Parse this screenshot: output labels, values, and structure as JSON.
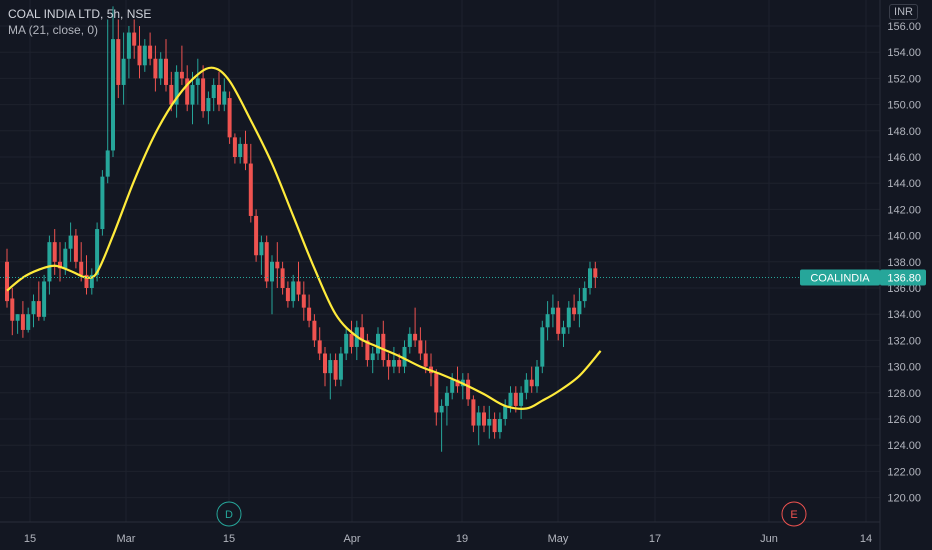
{
  "header": {
    "title": "COAL INDIA LTD, 5h, NSE",
    "indicator": "MA (21, close, 0)"
  },
  "price_axis": {
    "currency": "INR",
    "ticks": [
      "156.00",
      "154.00",
      "152.00",
      "150.00",
      "148.00",
      "146.00",
      "144.00",
      "142.00",
      "140.00",
      "138.00",
      "136.00",
      "134.00",
      "132.00",
      "130.00",
      "128.00",
      "126.00",
      "124.00",
      "122.00",
      "120.00"
    ]
  },
  "time_axis": {
    "labels": [
      "15",
      "Mar",
      "15",
      "Apr",
      "19",
      "May",
      "17",
      "Jun",
      "14"
    ]
  },
  "last_price": {
    "symbol": "COALINDIA",
    "value": "136.80",
    "value_num": 136.8,
    "color": "#26a69a"
  },
  "event_markers": [
    {
      "letter": "D",
      "color": "#26a69a"
    },
    {
      "letter": "E",
      "color": "#ef5350"
    }
  ],
  "colors": {
    "up": "#26a69a",
    "down": "#ef5350",
    "ma": "#ffeb3b",
    "background": "#131722",
    "grid": "#1e222d"
  },
  "chart_data": {
    "type": "candlestick",
    "symbol": "COAL INDIA LTD",
    "interval": "5h",
    "exchange": "NSE",
    "ylim": [
      119,
      157.5
    ],
    "ohlc": [
      [
        138.0,
        139.0,
        134.5,
        135.0
      ],
      [
        135.2,
        136.0,
        132.4,
        133.5
      ],
      [
        133.5,
        134.0,
        132.5,
        134.0
      ],
      [
        134.0,
        135.0,
        132.2,
        132.8
      ],
      [
        132.8,
        134.5,
        132.6,
        134.0
      ],
      [
        134.0,
        135.5,
        133.0,
        135.0
      ],
      [
        135.0,
        136.5,
        133.5,
        133.8
      ],
      [
        133.8,
        137.0,
        133.5,
        136.5
      ],
      [
        136.5,
        140.0,
        135.5,
        139.5
      ],
      [
        139.5,
        140.5,
        137.0,
        138.0
      ],
      [
        138.0,
        139.5,
        136.5,
        137.5
      ],
      [
        137.5,
        139.5,
        137.0,
        139.0
      ],
      [
        139.0,
        141.0,
        138.0,
        140.0
      ],
      [
        140.0,
        140.5,
        137.5,
        138.0
      ],
      [
        138.0,
        139.5,
        136.5,
        137.0
      ],
      [
        137.0,
        138.5,
        135.5,
        136.0
      ],
      [
        136.0,
        137.5,
        135.5,
        137.0
      ],
      [
        137.0,
        141.0,
        136.5,
        140.5
      ],
      [
        140.5,
        145.0,
        140.0,
        144.5
      ],
      [
        144.5,
        156.5,
        144.0,
        146.5
      ],
      [
        146.5,
        157.5,
        146.0,
        155.0
      ],
      [
        155.0,
        156.5,
        150.5,
        151.5
      ],
      [
        151.5,
        155.5,
        150.0,
        153.5
      ],
      [
        153.5,
        156.0,
        152.0,
        155.5
      ],
      [
        155.5,
        156.5,
        153.5,
        154.5
      ],
      [
        154.5,
        156.0,
        152.0,
        153.0
      ],
      [
        153.0,
        155.0,
        152.5,
        154.5
      ],
      [
        154.5,
        155.5,
        153.0,
        153.5
      ],
      [
        153.5,
        154.5,
        151.0,
        152.0
      ],
      [
        152.0,
        154.0,
        151.5,
        153.5
      ],
      [
        153.5,
        155.0,
        151.0,
        151.5
      ],
      [
        151.5,
        152.5,
        149.5,
        150.0
      ],
      [
        150.0,
        153.0,
        149.0,
        152.5
      ],
      [
        152.5,
        154.5,
        151.5,
        152.0
      ],
      [
        152.0,
        153.0,
        149.5,
        150.0
      ],
      [
        150.0,
        152.5,
        148.5,
        151.5
      ],
      [
        151.5,
        153.5,
        150.0,
        152.0
      ],
      [
        152.0,
        153.0,
        149.0,
        149.5
      ],
      [
        149.5,
        151.0,
        148.5,
        150.5
      ],
      [
        150.5,
        152.0,
        149.5,
        151.5
      ],
      [
        151.5,
        152.5,
        149.5,
        150.0
      ],
      [
        150.0,
        152.0,
        149.5,
        151.0
      ],
      [
        150.5,
        151.0,
        147.0,
        147.5
      ],
      [
        147.5,
        147.8,
        145.5,
        146.0
      ],
      [
        146.0,
        147.5,
        145.5,
        147.0
      ],
      [
        147.0,
        148.0,
        145.0,
        145.5
      ],
      [
        145.5,
        147.0,
        141.0,
        141.5
      ],
      [
        141.5,
        142.0,
        138.0,
        138.5
      ],
      [
        138.5,
        140.0,
        137.0,
        139.5
      ],
      [
        139.5,
        140.0,
        136.0,
        136.5
      ],
      [
        136.5,
        138.5,
        134.0,
        138.0
      ],
      [
        138.0,
        139.5,
        136.0,
        137.5
      ],
      [
        137.5,
        138.0,
        135.5,
        136.0
      ],
      [
        136.0,
        136.5,
        134.5,
        135.0
      ],
      [
        135.0,
        137.0,
        134.5,
        136.5
      ],
      [
        136.5,
        138.0,
        135.0,
        135.5
      ],
      [
        135.5,
        136.5,
        133.5,
        134.5
      ],
      [
        134.5,
        135.5,
        133.0,
        133.5
      ],
      [
        133.5,
        134.0,
        131.5,
        132.0
      ],
      [
        132.0,
        133.0,
        130.5,
        131.0
      ],
      [
        131.0,
        131.5,
        128.5,
        129.5
      ],
      [
        129.5,
        131.0,
        127.5,
        130.5
      ],
      [
        130.5,
        131.0,
        128.5,
        129.0
      ],
      [
        129.0,
        131.5,
        128.5,
        131.0
      ],
      [
        131.0,
        133.0,
        130.5,
        132.5
      ],
      [
        132.5,
        133.5,
        131.0,
        131.5
      ],
      [
        131.5,
        133.5,
        130.5,
        133.0
      ],
      [
        133.0,
        134.0,
        131.5,
        132.0
      ],
      [
        132.0,
        132.5,
        130.0,
        130.5
      ],
      [
        130.5,
        131.5,
        129.5,
        131.0
      ],
      [
        131.0,
        133.0,
        130.5,
        132.5
      ],
      [
        132.5,
        133.5,
        130.0,
        130.5
      ],
      [
        130.5,
        131.0,
        129.0,
        130.0
      ],
      [
        130.0,
        131.5,
        129.5,
        130.5
      ],
      [
        130.5,
        131.0,
        129.5,
        130.0
      ],
      [
        130.0,
        132.0,
        129.5,
        131.5
      ],
      [
        131.5,
        133.0,
        131.0,
        132.5
      ],
      [
        132.5,
        134.5,
        131.5,
        132.0
      ],
      [
        132.0,
        133.0,
        130.5,
        131.0
      ],
      [
        131.0,
        132.0,
        129.5,
        130.0
      ],
      [
        130.0,
        131.0,
        128.5,
        129.5
      ],
      [
        129.5,
        129.8,
        125.5,
        126.5
      ],
      [
        126.5,
        127.5,
        123.5,
        127.0
      ],
      [
        127.0,
        128.5,
        125.5,
        128.0
      ],
      [
        128.0,
        129.5,
        127.5,
        129.0
      ],
      [
        129.0,
        130.0,
        128.0,
        128.5
      ],
      [
        128.5,
        129.5,
        127.5,
        129.0
      ],
      [
        129.0,
        129.5,
        127.0,
        127.5
      ],
      [
        127.5,
        127.8,
        125.0,
        125.5
      ],
      [
        125.5,
        127.0,
        124.0,
        126.5
      ],
      [
        126.5,
        127.0,
        125.0,
        125.5
      ],
      [
        125.5,
        127.0,
        124.5,
        126.0
      ],
      [
        126.0,
        126.5,
        124.5,
        125.0
      ],
      [
        125.0,
        126.5,
        124.5,
        126.0
      ],
      [
        126.0,
        127.5,
        125.5,
        127.0
      ],
      [
        127.0,
        128.5,
        126.5,
        128.0
      ],
      [
        128.0,
        128.5,
        126.5,
        127.0
      ],
      [
        127.0,
        128.5,
        126.0,
        128.0
      ],
      [
        128.0,
        129.5,
        127.5,
        129.0
      ],
      [
        129.0,
        130.0,
        128.0,
        128.5
      ],
      [
        128.5,
        130.5,
        128.0,
        130.0
      ],
      [
        130.0,
        133.5,
        129.5,
        133.0
      ],
      [
        133.0,
        135.0,
        132.0,
        134.0
      ],
      [
        134.0,
        135.5,
        133.0,
        134.5
      ],
      [
        134.5,
        135.0,
        132.0,
        132.5
      ],
      [
        132.5,
        133.5,
        131.5,
        133.0
      ],
      [
        133.0,
        135.0,
        132.5,
        134.5
      ],
      [
        134.5,
        135.5,
        133.5,
        134.0
      ],
      [
        134.0,
        136.0,
        133.0,
        135.0
      ],
      [
        135.0,
        136.5,
        134.5,
        136.0
      ],
      [
        136.0,
        138.0,
        135.5,
        137.5
      ],
      [
        137.5,
        138.0,
        136.0,
        136.8
      ]
    ],
    "ma": [
      {
        "bar": 0,
        "value": 135.8
      },
      {
        "bar": 3,
        "value": 136.8
      },
      {
        "bar": 6,
        "value": 137.4
      },
      {
        "bar": 9,
        "value": 137.7
      },
      {
        "bar": 12,
        "value": 137.3
      },
      {
        "bar": 15,
        "value": 136.8
      },
      {
        "bar": 17,
        "value": 137.2
      },
      {
        "bar": 20,
        "value": 140.0
      },
      {
        "bar": 24,
        "value": 144.2
      },
      {
        "bar": 28,
        "value": 147.8
      },
      {
        "bar": 32,
        "value": 150.5
      },
      {
        "bar": 36,
        "value": 152.3
      },
      {
        "bar": 39,
        "value": 152.8
      },
      {
        "bar": 42,
        "value": 151.8
      },
      {
        "bar": 46,
        "value": 148.8
      },
      {
        "bar": 50,
        "value": 145.5
      },
      {
        "bar": 54,
        "value": 141.5
      },
      {
        "bar": 58,
        "value": 137.5
      },
      {
        "bar": 62,
        "value": 134.0
      },
      {
        "bar": 66,
        "value": 132.3
      },
      {
        "bar": 70,
        "value": 131.5
      },
      {
        "bar": 74,
        "value": 130.8
      },
      {
        "bar": 78,
        "value": 130.0
      },
      {
        "bar": 82,
        "value": 129.4
      },
      {
        "bar": 86,
        "value": 128.7
      },
      {
        "bar": 90,
        "value": 127.9
      },
      {
        "bar": 94,
        "value": 127.0
      },
      {
        "bar": 98,
        "value": 126.8
      },
      {
        "bar": 101,
        "value": 127.4
      },
      {
        "bar": 104,
        "value": 128.1
      },
      {
        "bar": 108,
        "value": 129.3
      },
      {
        "bar": 112,
        "value": 131.2
      }
    ]
  }
}
